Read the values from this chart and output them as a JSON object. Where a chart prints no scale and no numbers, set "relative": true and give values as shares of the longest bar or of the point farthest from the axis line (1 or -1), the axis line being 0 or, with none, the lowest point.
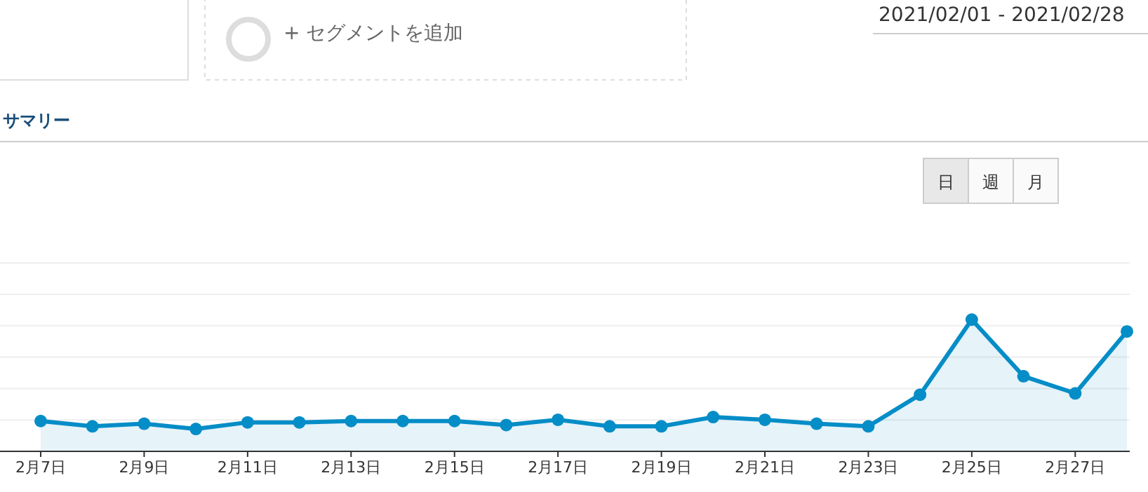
{
  "chart_data": {
    "type": "area",
    "title": "サマリー",
    "annotations": [
      "+ セグメントを追加",
      "2021/02/01 - 2021/02/28",
      "日",
      "週",
      "月"
    ],
    "categories": [
      "2月7日",
      null,
      "2月9日",
      null,
      "2月11日",
      null,
      "2月13日",
      null,
      "2月15日",
      null,
      "2月17日",
      null,
      "2月19日",
      null,
      "2月21日",
      null,
      "2月23日",
      null,
      "2月25日",
      null,
      "2月27日",
      null
    ],
    "series": [
      {
        "color": "#058dc7",
        "values": [
          0.23,
          0.19,
          0.21,
          0.17,
          0.22,
          0.22,
          0.23,
          0.23,
          0.23,
          0.2,
          0.24,
          0.19,
          0.19,
          0.26,
          0.24,
          0.21,
          0.19,
          0.43,
          1,
          0.57,
          0.44,
          0.91
        ]
      }
    ],
    "relative": true,
    "grid": true,
    "marker": "circle",
    "line_style": "solid"
  }
}
